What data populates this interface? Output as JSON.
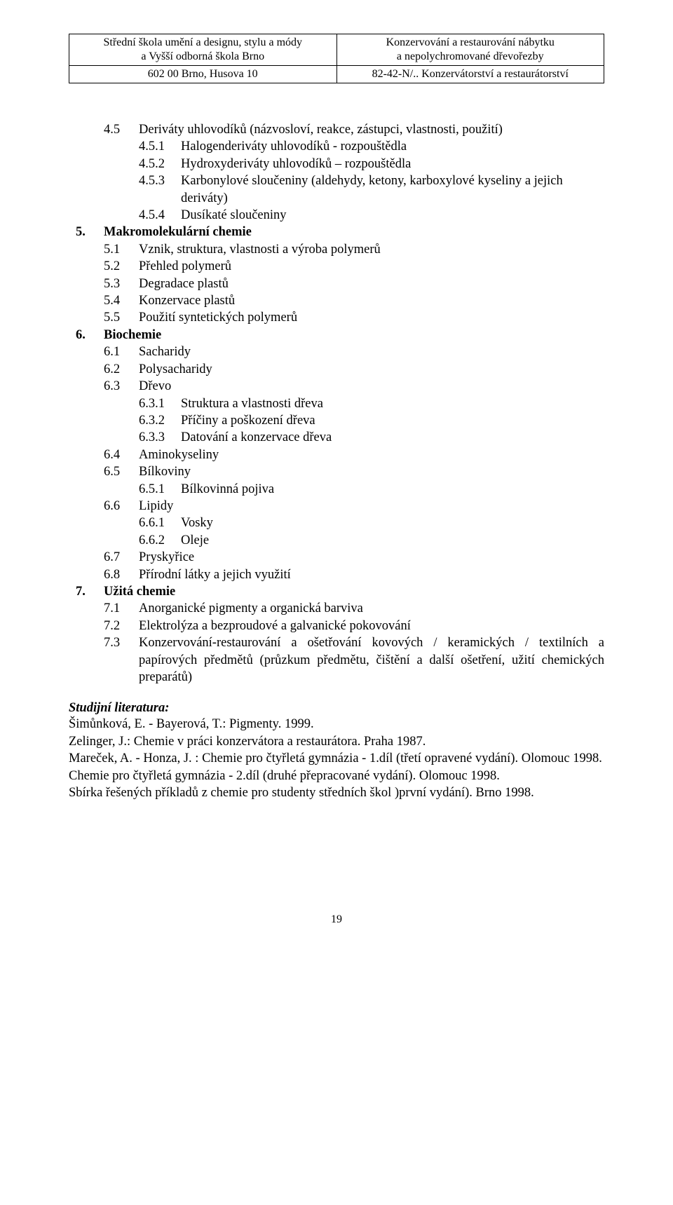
{
  "header": {
    "row1_left_line1": "Střední škola umění a designu, stylu a módy",
    "row1_left_line2": "a Vyšší odborná škola Brno",
    "row1_right_line1": "Konzervování a restaurování nábytku",
    "row1_right_line2": "a nepolychromované dřevořezby",
    "row2_left": "602 00 Brno, Husova 10",
    "row2_right": "82-42-N/.. Konzervátorství a restaurátorství"
  },
  "outline": [
    {
      "level": 1,
      "num": "4.5",
      "text": "Deriváty uhlovodíků (názvosloví, reakce, zástupci, vlastnosti, použití)"
    },
    {
      "level": 2,
      "num": "4.5.1",
      "text": "Halogenderiváty uhlovodíků - rozpouštědla"
    },
    {
      "level": 2,
      "num": "4.5.2",
      "text": "Hydroxyderiváty uhlovodíků – rozpouštědla"
    },
    {
      "level": 2,
      "num": "4.5.3",
      "text": "Karbonylové sloučeniny (aldehydy, ketony, karboxylové kyseliny a jejich deriváty)"
    },
    {
      "level": 2,
      "num": "4.5.4",
      "text": "Dusíkaté sloučeniny"
    },
    {
      "level": 0,
      "num": "5.",
      "text": "Makromolekulární chemie",
      "bold": true
    },
    {
      "level": 1,
      "num": "5.1",
      "text": "Vznik, struktura, vlastnosti a výroba polymerů"
    },
    {
      "level": 1,
      "num": "5.2",
      "text": "Přehled polymerů"
    },
    {
      "level": 1,
      "num": "5.3",
      "text": "Degradace plastů"
    },
    {
      "level": 1,
      "num": "5.4",
      "text": "Konzervace plastů"
    },
    {
      "level": 1,
      "num": "5.5",
      "text": "Použití syntetických polymerů"
    },
    {
      "level": 0,
      "num": "6.",
      "text": "Biochemie",
      "bold": true
    },
    {
      "level": 1,
      "num": "6.1",
      "text": "Sacharidy"
    },
    {
      "level": 1,
      "num": "6.2",
      "text": "Polysacharidy"
    },
    {
      "level": 1,
      "num": "6.3",
      "text": "Dřevo"
    },
    {
      "level": 2,
      "num": "6.3.1",
      "text": "Struktura a vlastnosti dřeva"
    },
    {
      "level": 2,
      "num": "6.3.2",
      "text": "Příčiny a poškození dřeva"
    },
    {
      "level": 2,
      "num": "6.3.3",
      "text": "Datování a konzervace dřeva"
    },
    {
      "level": 1,
      "num": "6.4",
      "text": "Aminokyseliny"
    },
    {
      "level": 1,
      "num": "6.5",
      "text": "Bílkoviny"
    },
    {
      "level": 2,
      "num": "6.5.1",
      "text": "Bílkovinná pojiva"
    },
    {
      "level": 1,
      "num": "6.6",
      "text": "Lipidy"
    },
    {
      "level": 2,
      "num": "6.6.1",
      "text": "Vosky"
    },
    {
      "level": 2,
      "num": "6.6.2",
      "text": "Oleje"
    },
    {
      "level": 1,
      "num": "6.7",
      "text": "Pryskyřice"
    },
    {
      "level": 1,
      "num": "6.8",
      "text": "Přírodní látky a jejich využití"
    },
    {
      "level": 0,
      "num": "7.",
      "text": "Užitá chemie",
      "bold": true
    },
    {
      "level": 1,
      "num": "7.1",
      "text": "Anorganické pigmenty a organická barviva"
    },
    {
      "level": 1,
      "num": "7.2",
      "text": "Elektrolýza a bezproudové a galvanické pokovování"
    },
    {
      "level": 1,
      "num": "7.3",
      "text": "Konzervování-restaurování a ošetřování kovových / keramických / textilních a papírových předmětů (průzkum předmětu, čištění a další ošetření, užití chemických preparátů)",
      "justify": true
    }
  ],
  "literature": {
    "heading": "Studijní literatura:",
    "lines": [
      "Šimůnková, E. - Bayerová, T.: Pigmenty. 1999.",
      "Zelinger, J.: Chemie v práci konzervátora a restaurátora. Praha 1987.",
      "Mareček, A. - Honza, J. : Chemie pro čtyřletá gymnázia - 1.díl (třetí opravené vydání). Olomouc 1998.",
      "Chemie pro čtyřletá gymnázia  - 2.díl (druhé přepracované vydání). Olomouc 1998.",
      "Sbírka řešených příkladů z chemie pro studenty středních škol )první vydání). Brno 1998."
    ]
  },
  "page_number": "19"
}
